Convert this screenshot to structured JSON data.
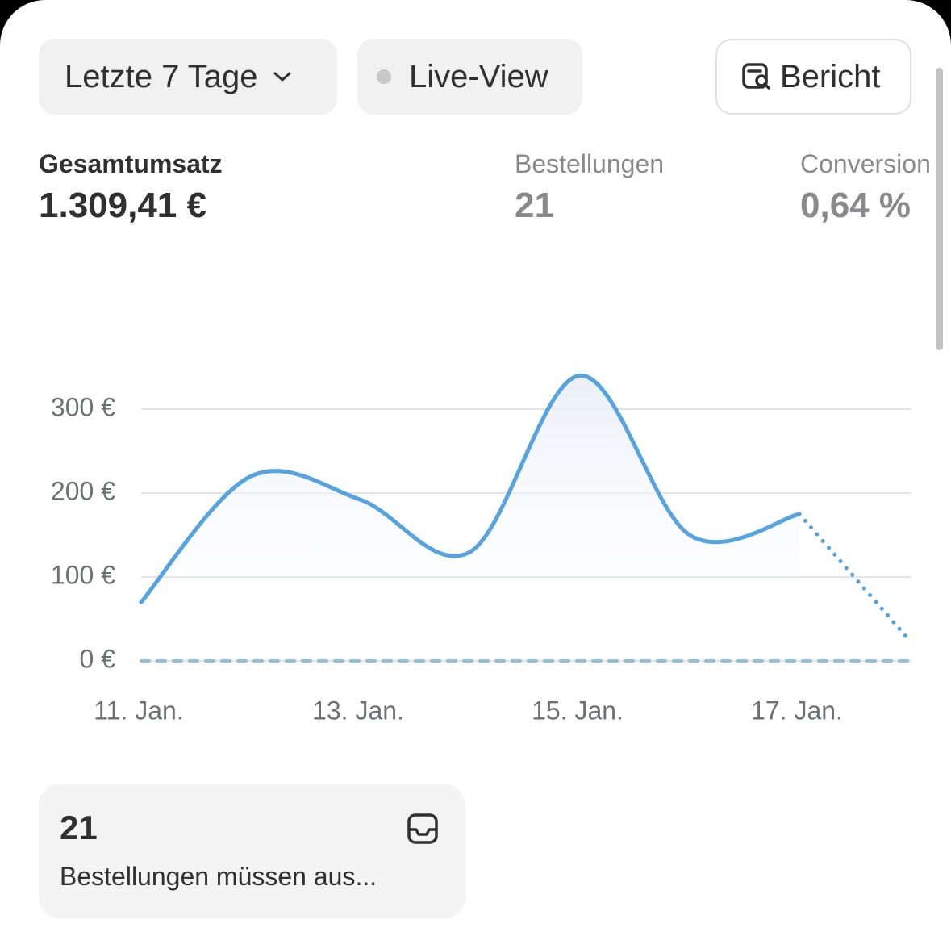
{
  "toolbar": {
    "range": "Letzte 7 Tage",
    "live": "Live-View",
    "report": "Bericht"
  },
  "metrics": [
    {
      "label": "Gesamtumsatz",
      "value": "1.309,41 €"
    },
    {
      "label": "Bestellungen",
      "value": "21"
    },
    {
      "label": "Conversion",
      "value": "0,64 %"
    }
  ],
  "chart_data": {
    "type": "line",
    "categories": [
      "11. Jan.",
      null,
      "13. Jan.",
      null,
      "15. Jan.",
      null,
      "17. Jan.",
      null
    ],
    "series": [
      {
        "color": "#55a3e0",
        "style": "solid",
        "area": true,
        "values": [
          70,
          220,
          192,
          130,
          340,
          150,
          175,
          null
        ]
      },
      {
        "color": "#55a3e0",
        "style": "dotted",
        "values": [
          null,
          null,
          null,
          null,
          null,
          null,
          175,
          25
        ]
      },
      {
        "color": "#8ec0e6",
        "style": "dashed",
        "values": [
          0,
          0,
          0,
          0,
          0,
          0,
          0,
          0
        ]
      }
    ],
    "ylim": [
      0,
      350
    ],
    "yticks": [
      {
        "value": 0,
        "label": "0 €"
      },
      {
        "value": 100,
        "label": "100 €"
      },
      {
        "value": 200,
        "label": "200 €"
      },
      {
        "value": 300,
        "label": "300 €"
      }
    ],
    "grid": true
  },
  "card": {
    "number": "21",
    "text": "Bestellungen müssen aus..."
  }
}
